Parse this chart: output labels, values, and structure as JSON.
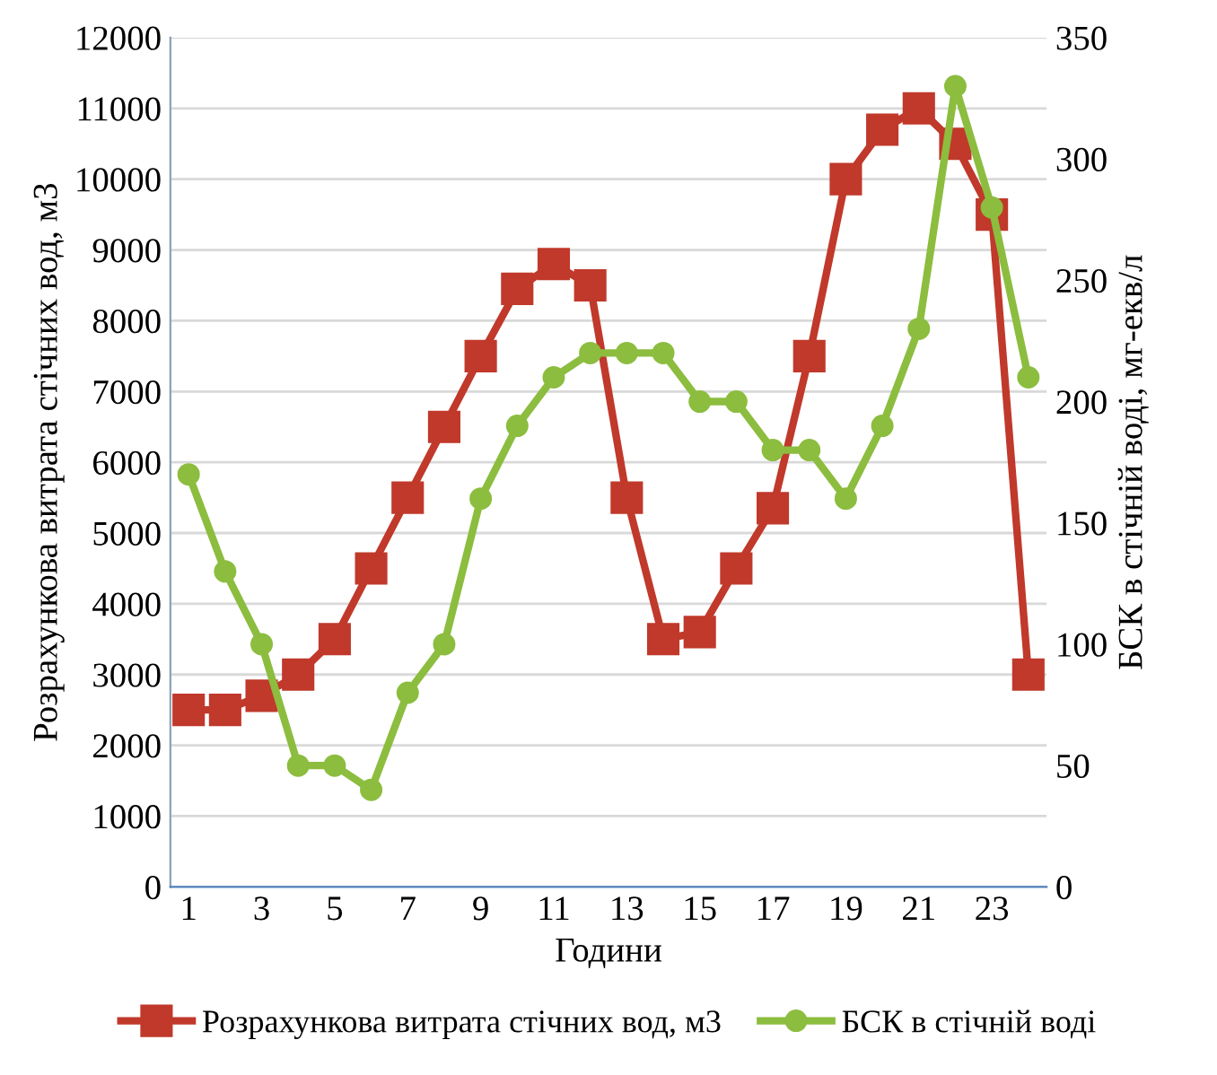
{
  "chart_data": {
    "type": "line",
    "xlabel": "Години",
    "ylabel": "Розрахункова витрата стічних вод, м3",
    "y2label": "БСК в стічній воді, мг-екв/л",
    "categories": [
      "1",
      null,
      "3",
      null,
      "5",
      null,
      "7",
      null,
      "9",
      null,
      "11",
      null,
      "13",
      null,
      "15",
      null,
      "17",
      null,
      "19",
      null,
      "21",
      null,
      "23",
      null
    ],
    "series": [
      {
        "name": "Розрахункова витрата стічних вод, м3",
        "color": "#c0392b",
        "marker": "square",
        "values": [
          2500,
          2500,
          2700,
          3000,
          3500,
          4500,
          5500,
          6500,
          7500,
          8450,
          8800,
          8500,
          5500,
          3500,
          3600,
          4500,
          5350,
          7500,
          10000,
          10700,
          11000,
          10500,
          9500,
          3000
        ]
      },
      {
        "name": "БСК в стічній воді",
        "color": "#8cbd3f",
        "marker": "circle",
        "axis": "y2",
        "values": [
          170,
          130,
          100,
          50,
          50,
          40,
          80,
          100,
          160,
          190,
          210,
          220,
          220,
          220,
          200,
          200,
          180,
          180,
          160,
          190,
          230,
          330,
          280,
          210
        ]
      }
    ],
    "ylim": [
      0,
      12000
    ],
    "yticks": [
      0,
      1000,
      2000,
      3000,
      4000,
      5000,
      6000,
      7000,
      8000,
      9000,
      10000,
      11000,
      12000
    ],
    "y2lim": [
      0,
      350
    ],
    "y2ticks": [
      0,
      50,
      100,
      150,
      200,
      250,
      300,
      350
    ],
    "grid": "y",
    "legend": "bottom"
  }
}
